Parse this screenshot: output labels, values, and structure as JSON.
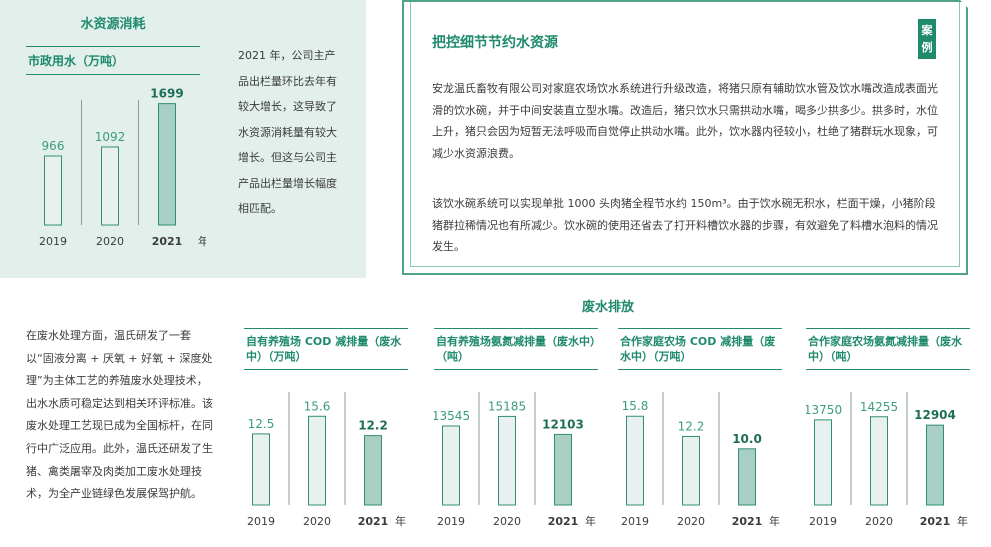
{
  "water_panel": {
    "title": "水资源消耗",
    "subtitle": "市政用水（万吨）",
    "text": "2021 年，公司主产品出栏量环比去年有较大增长，这导致了水资源消耗量有较大增长。但这与公司主产品出栏量增长幅度相匹配。",
    "year_unit": "年"
  },
  "case_box": {
    "title": "把控细节节约水资源",
    "badge": "案例",
    "para1": "安龙温氏畜牧有限公司对家庭农场饮水系统进行升级改造，将猪只原有辅助饮水管及饮水嘴改造成表面光滑的饮水碗，并于中间安装直立型水嘴。改造后，猪只饮水只需拱动水嘴，喝多少拱多少。拱多时，水位上升，猪只会因为短暂无法呼吸而自觉停止拱动水嘴。此外，饮水器内径较小，杜绝了猪群玩水现象，可减少水资源浪费。",
    "para2": "该饮水碗系统可以实现单批 1000 头肉猪全程节水约 150m³。由于饮水碗无积水，栏面干燥，小猪阶段猪群拉稀情况也有所减少。饮水碗的使用还省去了打开料槽饮水器的步骤，有效避免了料槽水泡料的情况发生。"
  },
  "wastewater": {
    "title": "废水排放",
    "text": "在废水处理方面，温氏研发了一套以“固液分离 + 厌氧 + 好氧 + 深度处理”为主体工艺的养殖废水处理技术，出水水质可稳定达到相关环评标准。该废水处理工艺现已成为全国标杆，在同行中广泛应用。此外，温氏还研发了生猪、禽类屠宰及肉类加工废水处理技术，为全产业链绿色发展保驾护航。"
  },
  "chart_data": [
    {
      "type": "bar",
      "title": "市政用水（万吨）",
      "categories": [
        "2019",
        "2020",
        "2021"
      ],
      "values": [
        966,
        1092,
        1699
      ],
      "value_labels": [
        "966",
        "1092",
        "1699"
      ],
      "ylim": [
        0,
        1750
      ],
      "highlight_last": true,
      "year_unit": "年"
    },
    {
      "type": "bar",
      "title": "自有养殖场 COD 减排量（废水中）（万吨）",
      "categories": [
        "2019",
        "2020",
        "2021"
      ],
      "values": [
        12.5,
        15.6,
        12.2
      ],
      "value_labels": [
        "12.5",
        "15.6",
        "12.2"
      ],
      "ylim": [
        0,
        16
      ],
      "highlight_last": true,
      "year_unit": "年"
    },
    {
      "type": "bar",
      "title": "自有养殖场氨氮减排量（废水中）（吨）",
      "categories": [
        "2019",
        "2020",
        "2021"
      ],
      "values": [
        13545,
        15185,
        12103
      ],
      "value_labels": [
        "13545",
        "15185",
        "12103"
      ],
      "ylim": [
        0,
        15600
      ],
      "highlight_last": true,
      "year_unit": "年"
    },
    {
      "type": "bar",
      "title": "合作家庭农场 COD 减排量（废水中）（万吨）",
      "categories": [
        "2019",
        "2020",
        "2021"
      ],
      "values": [
        15.8,
        12.2,
        10.0
      ],
      "value_labels": [
        "15.8",
        "12.2",
        "10.0"
      ],
      "ylim": [
        0,
        16.2
      ],
      "highlight_last": true,
      "year_unit": "年"
    },
    {
      "type": "bar",
      "title": "合作家庭农场氨氮减排量（废水中）（吨）",
      "categories": [
        "2019",
        "2020",
        "2021"
      ],
      "values": [
        13750,
        14255,
        12904
      ],
      "value_labels": [
        "13750",
        "14255",
        "12904"
      ],
      "ylim": [
        0,
        14700
      ],
      "highlight_last": true,
      "year_unit": "年"
    }
  ]
}
